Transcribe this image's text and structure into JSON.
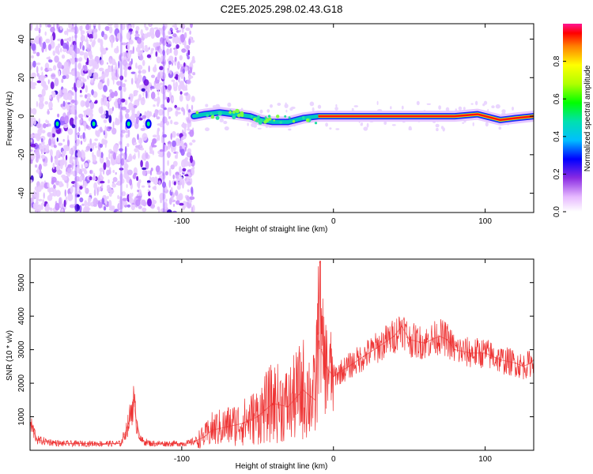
{
  "title": "C2E5.2025.298.02.43.G18",
  "chart_data": [
    {
      "type": "heatmap",
      "title": "C2E5.2025.298.02.43.G18",
      "xlabel": "Height of straight line (km)",
      "ylabel": "Frequency (Hz)",
      "xlim": [
        -200,
        132
      ],
      "ylim": [
        -50,
        48
      ],
      "x_ticks": [
        -100,
        0,
        100
      ],
      "y_ticks": [
        -40,
        -20,
        0,
        20,
        40
      ],
      "x_tick_labels": [
        "-100",
        "0",
        "100"
      ],
      "y_tick_labels": [
        "-40",
        "-20",
        "0",
        "20",
        "40"
      ],
      "signal_trace": [
        {
          "x": -92,
          "y": 0
        },
        {
          "x": -85,
          "y": 1
        },
        {
          "x": -75,
          "y": 2
        },
        {
          "x": -65,
          "y": 1
        },
        {
          "x": -55,
          "y": 0
        },
        {
          "x": -48,
          "y": -2
        },
        {
          "x": -40,
          "y": -3
        },
        {
          "x": -30,
          "y": -3
        },
        {
          "x": -20,
          "y": -1
        },
        {
          "x": -10,
          "y": 0
        },
        {
          "x": 0,
          "y": 0
        },
        {
          "x": 10,
          "y": 0
        },
        {
          "x": 50,
          "y": 0
        },
        {
          "x": 80,
          "y": 0
        },
        {
          "x": 95,
          "y": 1
        },
        {
          "x": 110,
          "y": -2
        },
        {
          "x": 120,
          "y": -1
        },
        {
          "x": 132,
          "y": 0
        }
      ],
      "noise_region_xlim": [
        -200,
        -92
      ],
      "colorbar": {
        "label": "Normalized spectral amplitude",
        "range": [
          0,
          1
        ],
        "ticks": [
          0.0,
          0.2,
          0.4,
          0.6,
          0.8
        ],
        "tick_labels": [
          "0.0",
          "0.2",
          "0.4",
          "0.6",
          "0.8"
        ]
      }
    },
    {
      "type": "line",
      "xlabel": "Height of straight line (km)",
      "ylabel": "SNR (10 * v/v)",
      "xlim": [
        -200,
        132
      ],
      "ylim": [
        0,
        5700
      ],
      "x_ticks": [
        -100,
        0,
        100
      ],
      "y_ticks": [
        1000,
        2000,
        3000,
        4000,
        5000
      ],
      "x_tick_labels": [
        "-100",
        "0",
        "100"
      ],
      "y_tick_labels": [
        "1000",
        "2000",
        "3000",
        "4000",
        "5000"
      ],
      "color": "#ee3333",
      "series": [
        {
          "name": "SNR",
          "x": [
            -200,
            -195,
            -180,
            -160,
            -140,
            -135,
            -132,
            -130,
            -127,
            -124,
            -120,
            -110,
            -100,
            -95,
            -90,
            -85,
            -80,
            -70,
            -60,
            -50,
            -45,
            -40,
            -30,
            -20,
            -15,
            -12,
            -10,
            -9,
            -8,
            -5,
            0,
            10,
            20,
            30,
            40,
            45,
            50,
            60,
            70,
            75,
            80,
            90,
            100,
            110,
            120,
            125,
            130,
            132
          ],
          "y": [
            800,
            300,
            200,
            200,
            200,
            800,
            1500,
            900,
            300,
            250,
            200,
            200,
            200,
            220,
            300,
            400,
            600,
            700,
            800,
            1000,
            1200,
            1400,
            1300,
            1800,
            1600,
            1500,
            3500,
            5600,
            3000,
            2500,
            2200,
            2500,
            2800,
            3100,
            3400,
            3700,
            3300,
            3200,
            3400,
            3300,
            3000,
            2900,
            2900,
            2700,
            2600,
            2500,
            2600,
            2700
          ]
        }
      ]
    }
  ]
}
